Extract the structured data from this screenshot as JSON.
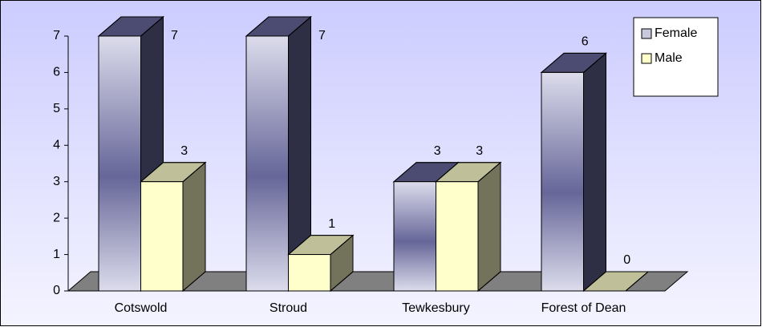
{
  "chart_data": {
    "type": "bar3d",
    "categories": [
      "Cotswold",
      "Stroud",
      "Tewkesbury",
      "Forest of Dean"
    ],
    "series": [
      {
        "name": "Female",
        "color": "#666699",
        "values": [
          7,
          7,
          3,
          6
        ]
      },
      {
        "name": "Male",
        "color": "#ffffcc",
        "values": [
          3,
          1,
          3,
          0
        ]
      }
    ],
    "ylim": [
      0,
      7
    ],
    "yticks": [
      0,
      1,
      2,
      3,
      4,
      5,
      6,
      7
    ],
    "legend": "top-right",
    "data_labels": true
  }
}
